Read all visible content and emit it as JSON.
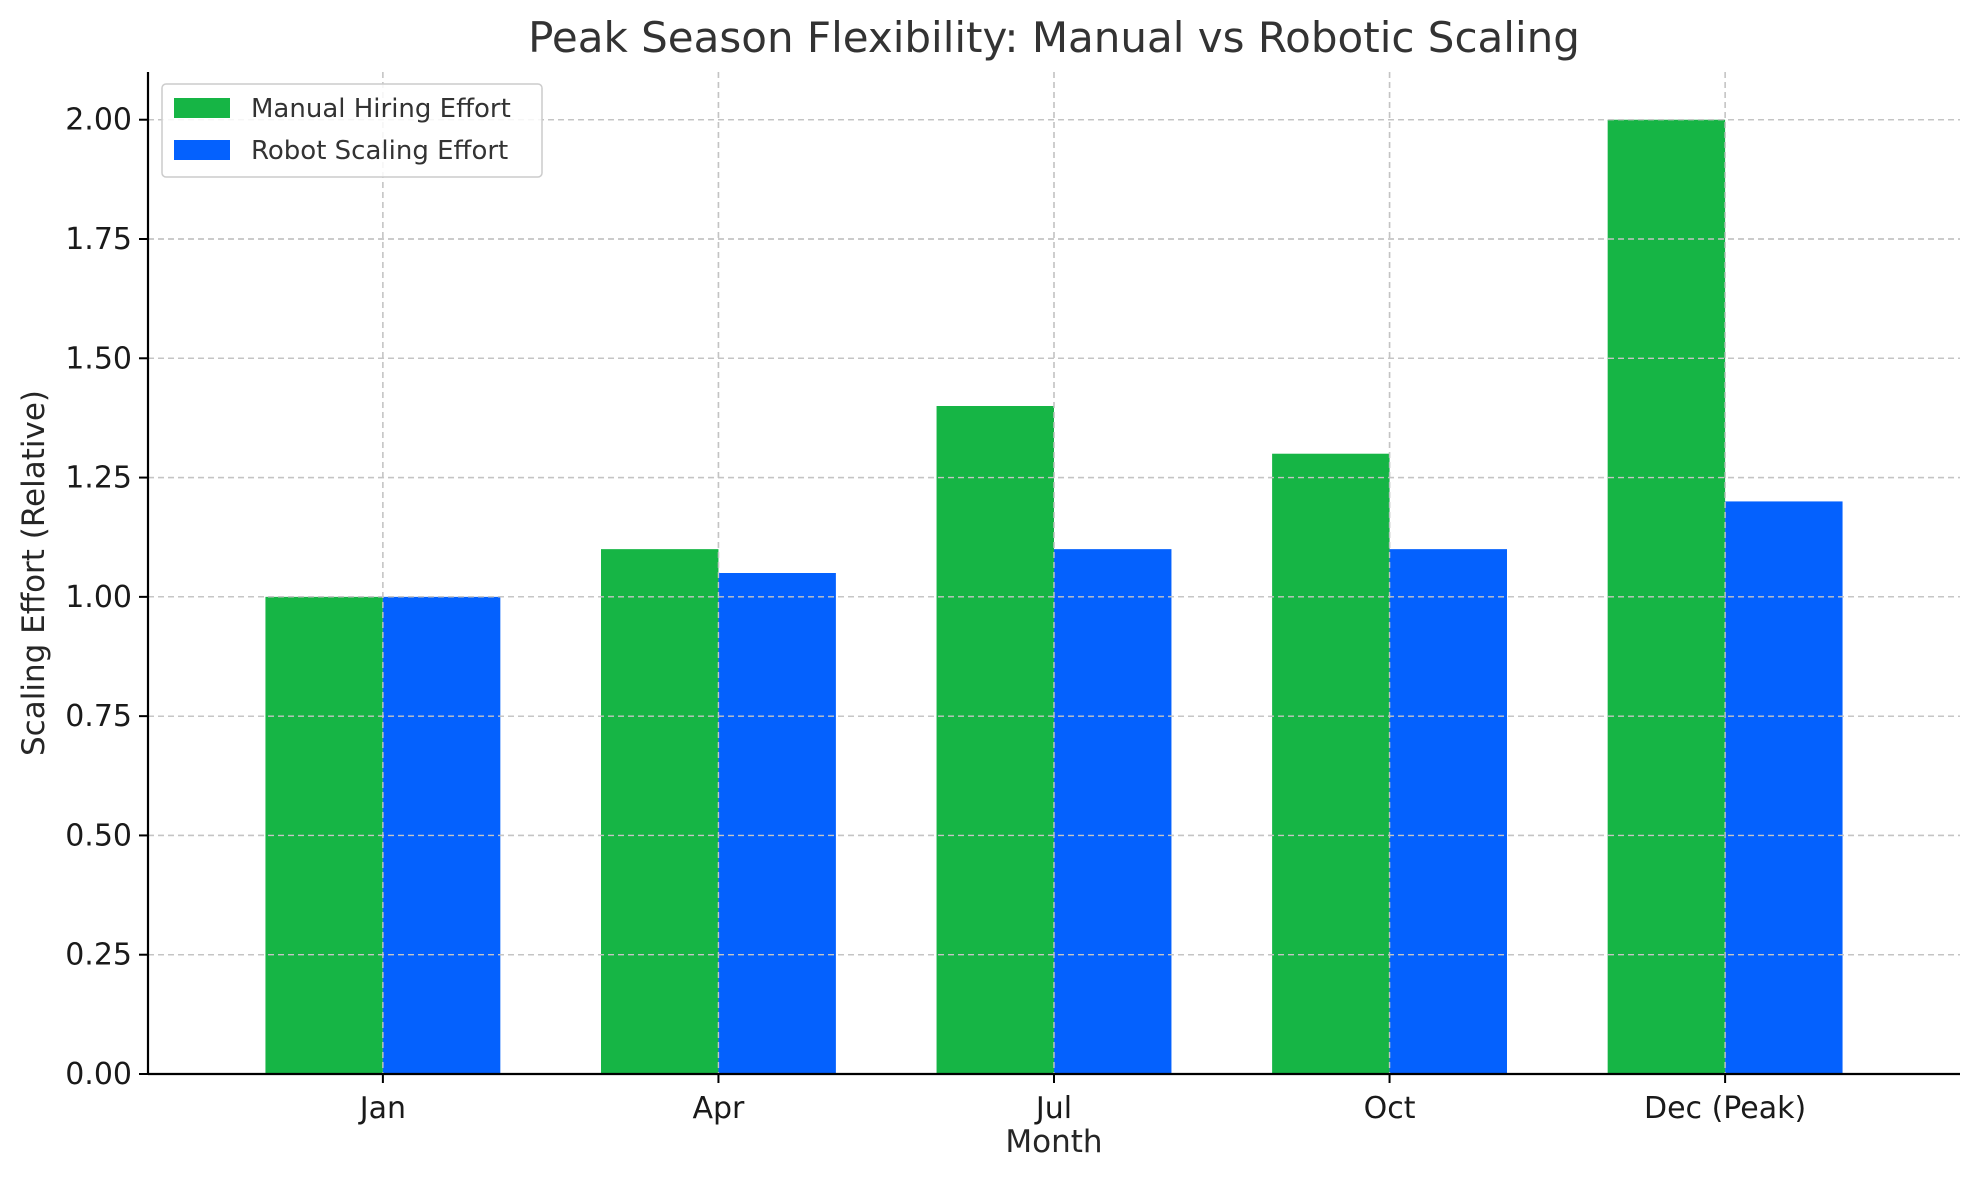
{
  "chart_data": {
    "type": "bar",
    "title": "Peak Season Flexibility: Manual vs Robotic Scaling",
    "xlabel": "Month",
    "ylabel": "Scaling Effort (Relative)",
    "categories": [
      "Jan",
      "Apr",
      "Jul",
      "Oct",
      "Dec (Peak)"
    ],
    "series": [
      {
        "name": "Manual Hiring Effort",
        "values": [
          1.0,
          1.1,
          1.4,
          1.3,
          2.0
        ],
        "color": "#16b545"
      },
      {
        "name": "Robot Scaling Effort",
        "values": [
          1.0,
          1.05,
          1.1,
          1.1,
          1.2
        ],
        "color": "#0461fe"
      }
    ],
    "ylim": [
      0,
      2.1
    ],
    "yticks": [
      "0.00",
      "0.25",
      "0.50",
      "0.75",
      "1.00",
      "1.25",
      "1.50",
      "1.75",
      "2.00"
    ],
    "grid": true,
    "legend_position": "top-left"
  }
}
